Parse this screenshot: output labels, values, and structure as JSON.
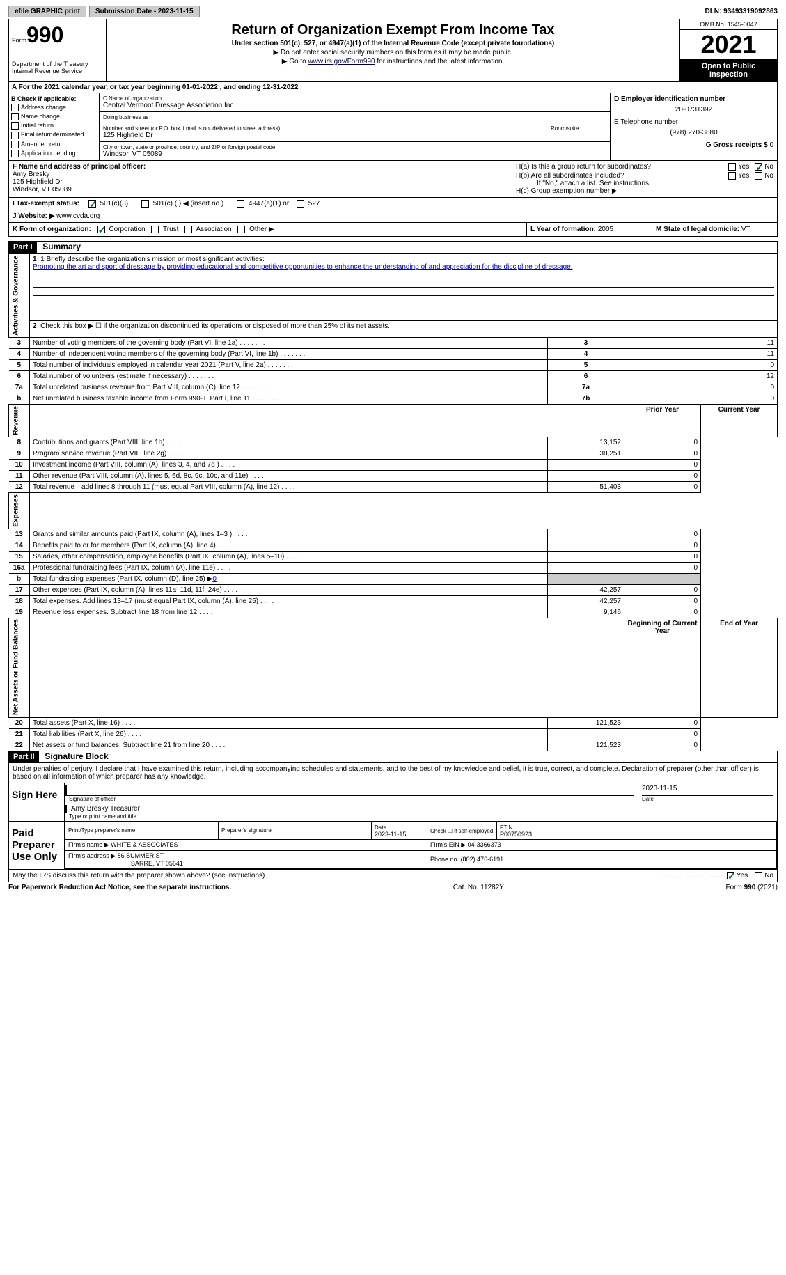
{
  "topbar": {
    "efile_btn": "efile GRAPHIC print",
    "submission_btn": "Submission Date - 2023-11-15",
    "dln": "DLN: 93493319092863"
  },
  "header": {
    "form_word": "Form",
    "form_num": "990",
    "dept": "Department of the Treasury Internal Revenue Service",
    "title": "Return of Organization Exempt From Income Tax",
    "subtitle": "Under section 501(c), 527, or 4947(a)(1) of the Internal Revenue Code (except private foundations)",
    "note1": "▶ Do not enter social security numbers on this form as it may be made public.",
    "note2_pre": "▶ Go to ",
    "note2_link": "www.irs.gov/Form990",
    "note2_post": " for instructions and the latest information.",
    "omb": "OMB No. 1545-0047",
    "year": "2021",
    "open": "Open to Public Inspection"
  },
  "period": "A For the 2021 calendar year, or tax year beginning 01-01-2022    , and ending 12-31-2022",
  "boxB": {
    "label": "B Check if applicable:",
    "items": [
      "Address change",
      "Name change",
      "Initial return",
      "Final return/terminated",
      "Amended return",
      "Application pending"
    ]
  },
  "boxC": {
    "name_label": "C Name of organization",
    "name": "Central Vermont Dressage Association Inc",
    "dba_label": "Doing business as",
    "dba": "",
    "addr_label": "Number and street (or P.O. box if mail is not delivered to street address)",
    "addr": "125 Highfield Dr",
    "room_label": "Room/suite",
    "city_label": "City or town, state or province, country, and ZIP or foreign postal code",
    "city": "Windsor, VT  05089"
  },
  "boxD": {
    "label": "D Employer identification number",
    "value": "20-0731392"
  },
  "boxE": {
    "label": "E Telephone number",
    "value": "(978) 270-3880"
  },
  "boxG": {
    "label": "G Gross receipts $",
    "value": "0"
  },
  "boxF": {
    "label": "F  Name and address of principal officer:",
    "name": "Amy Bresky",
    "addr1": "125 Highfield Dr",
    "addr2": "Windsor, VT  05089"
  },
  "boxH": {
    "a": "H(a)  Is this a group return for subordinates?",
    "b": "H(b)  Are all subordinates included?",
    "note": "If \"No,\" attach a list. See instructions.",
    "c": "H(c)  Group exemption number ▶",
    "yes": "Yes",
    "no": "No"
  },
  "boxI": {
    "label": "I    Tax-exempt status:",
    "opts": [
      "501(c)(3)",
      "501(c) (  ) ◀ (insert no.)",
      "4947(a)(1) or",
      "527"
    ]
  },
  "boxJ": {
    "label": "J   Website: ▶",
    "value": "  www.cvda.org"
  },
  "boxK": {
    "label": "K Form of organization:",
    "opts": [
      "Corporation",
      "Trust",
      "Association",
      "Other ▶"
    ]
  },
  "boxL": {
    "label": "L Year of formation:",
    "value": "2005"
  },
  "boxM": {
    "label": "M State of legal domicile:",
    "value": "VT"
  },
  "part1": {
    "hdr": "Part I",
    "title": "Summary"
  },
  "mission": {
    "label": "1   Briefly describe the organization's mission or most significant activities:",
    "text": "Promoting the art and sport of dressage by providing educational and competitive opportunities to enhance the understanding of and appreciation for the discipline of dressage."
  },
  "line2": "Check this box ▶ ☐  if the organization discontinued its operations or disposed of more than 25% of its net assets.",
  "sidebar": {
    "ag": "Activities & Governance",
    "rev": "Revenue",
    "exp": "Expenses",
    "net": "Net Assets or Fund Balances"
  },
  "lines_ag": [
    {
      "n": "3",
      "d": "Number of voting members of the governing body (Part VI, line 1a)",
      "box": "3",
      "v": "11"
    },
    {
      "n": "4",
      "d": "Number of independent voting members of the governing body (Part VI, line 1b)",
      "box": "4",
      "v": "11"
    },
    {
      "n": "5",
      "d": "Total number of individuals employed in calendar year 2021 (Part V, line 2a)",
      "box": "5",
      "v": "0"
    },
    {
      "n": "6",
      "d": "Total number of volunteers (estimate if necessary)",
      "box": "6",
      "v": "12"
    },
    {
      "n": "7a",
      "d": "Total unrelated business revenue from Part VIII, column (C), line 12",
      "box": "7a",
      "v": "0"
    },
    {
      "n": "b",
      "d": "Net unrelated business taxable income from Form 990-T, Part I, line 11",
      "box": "7b",
      "v": "0"
    }
  ],
  "pycy": {
    "py": "Prior Year",
    "cy": "Current Year",
    "bcy": "Beginning of Current Year",
    "eoy": "End of Year"
  },
  "lines_rev": [
    {
      "n": "8",
      "d": "Contributions and grants (Part VIII, line 1h)",
      "py": "13,152",
      "cy": "0"
    },
    {
      "n": "9",
      "d": "Program service revenue (Part VIII, line 2g)",
      "py": "38,251",
      "cy": "0"
    },
    {
      "n": "10",
      "d": "Investment income (Part VIII, column (A), lines 3, 4, and 7d )",
      "py": "",
      "cy": "0"
    },
    {
      "n": "11",
      "d": "Other revenue (Part VIII, column (A), lines 5, 6d, 8c, 9c, 10c, and 11e)",
      "py": "",
      "cy": "0"
    },
    {
      "n": "12",
      "d": "Total revenue—add lines 8 through 11 (must equal Part VIII, column (A), line 12)",
      "py": "51,403",
      "cy": "0"
    }
  ],
  "lines_exp": [
    {
      "n": "13",
      "d": "Grants and similar amounts paid (Part IX, column (A), lines 1–3 )",
      "py": "",
      "cy": "0"
    },
    {
      "n": "14",
      "d": "Benefits paid to or for members (Part IX, column (A), line 4)",
      "py": "",
      "cy": "0"
    },
    {
      "n": "15",
      "d": "Salaries, other compensation, employee benefits (Part IX, column (A), lines 5–10)",
      "py": "",
      "cy": "0"
    },
    {
      "n": "16a",
      "d": "Professional fundraising fees (Part IX, column (A), line 11e)",
      "py": "",
      "cy": "0"
    }
  ],
  "line16b": {
    "n": "b",
    "d": "Total fundraising expenses (Part IX, column (D), line 25) ▶",
    "v": "0"
  },
  "lines_exp2": [
    {
      "n": "17",
      "d": "Other expenses (Part IX, column (A), lines 11a–11d, 11f–24e)",
      "py": "42,257",
      "cy": "0"
    },
    {
      "n": "18",
      "d": "Total expenses. Add lines 13–17 (must equal Part IX, column (A), line 25)",
      "py": "42,257",
      "cy": "0"
    },
    {
      "n": "19",
      "d": "Revenue less expenses. Subtract line 18 from line 12",
      "py": "9,146",
      "cy": "0"
    }
  ],
  "lines_net": [
    {
      "n": "20",
      "d": "Total assets (Part X, line 16)",
      "py": "121,523",
      "cy": "0"
    },
    {
      "n": "21",
      "d": "Total liabilities (Part X, line 26)",
      "py": "",
      "cy": "0"
    },
    {
      "n": "22",
      "d": "Net assets or fund balances. Subtract line 21 from line 20",
      "py": "121,523",
      "cy": "0"
    }
  ],
  "part2": {
    "hdr": "Part II",
    "title": "Signature Block"
  },
  "penalty": "Under penalties of perjury, I declare that I have examined this return, including accompanying schedules and statements, and to the best of my knowledge and belief, it is true, correct, and complete. Declaration of preparer (other than officer) is based on all information of which preparer has any knowledge.",
  "sign": {
    "here": "Sign Here",
    "sig_label": "Signature of officer",
    "date": "2023-11-15",
    "date_label": "Date",
    "name": "Amy Bresky  Treasurer",
    "name_label": "Type or print name and title"
  },
  "prep": {
    "title": "Paid Preparer Use Only",
    "name_label": "Print/Type preparer's name",
    "sig_label": "Preparer's signature",
    "date_label": "Date",
    "date": "2023-11-15",
    "check_label": "Check ☐ if self-employed",
    "ptin_label": "PTIN",
    "ptin": "P00750923",
    "firm_name_label": "Firm's name    ▶",
    "firm_name": "WHITE & ASSOCIATES",
    "firm_ein_label": "Firm's EIN ▶",
    "firm_ein": "04-3366373",
    "firm_addr_label": "Firm's address ▶",
    "firm_addr": "86 SUMMER ST",
    "firm_city": "BARRE, VT  05641",
    "phone_label": "Phone no.",
    "phone": "(802) 476-6191"
  },
  "discuss": {
    "q": "May the IRS discuss this return with the preparer shown above? (see instructions)",
    "yes": "Yes",
    "no": "No"
  },
  "footer": {
    "pra": "For Paperwork Reduction Act Notice, see the separate instructions.",
    "cat": "Cat. No. 11282Y",
    "form": "Form 990 (2021)"
  }
}
